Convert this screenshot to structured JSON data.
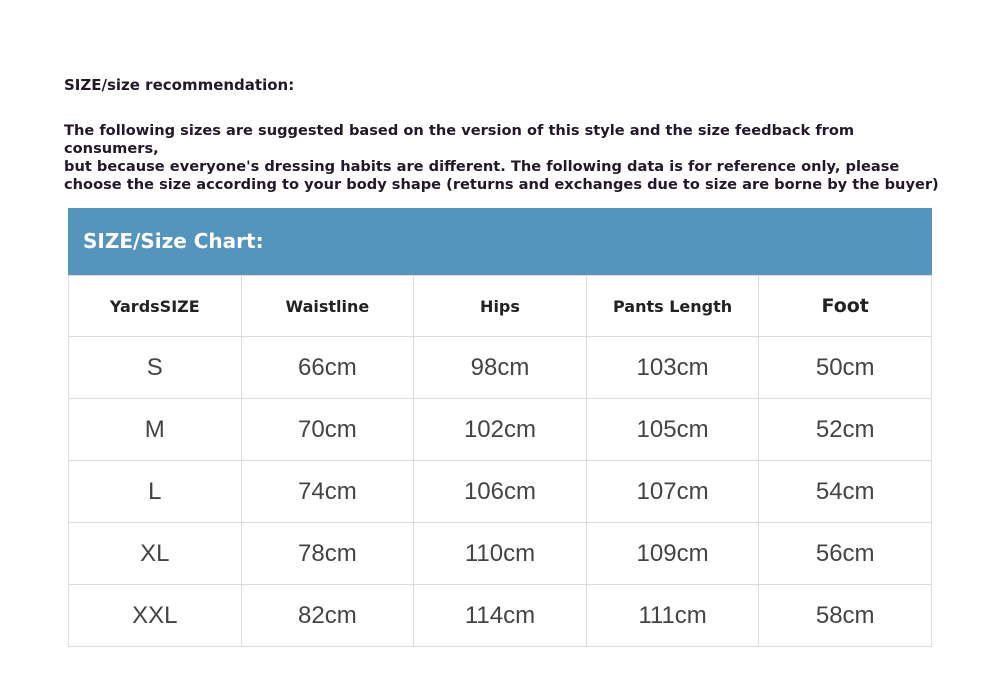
{
  "recommendation": {
    "title": "SIZE/size recommendation:",
    "body": "The following sizes are suggested based on the version of this style and the size feedback from consumers,\nbut because everyone's dressing habits are different. The following data is for reference only, please\nchoose the size according to your body shape (returns and exchanges due to size are borne by the buyer)"
  },
  "size_chart": {
    "title": "SIZE/Size Chart:",
    "header_color": "#5594bc",
    "columns": [
      "YardsSIZE",
      "Waistline",
      "Hips",
      "Pants Length",
      "Foot"
    ],
    "rows": [
      [
        "S",
        "66cm",
        "98cm",
        "103cm",
        "50cm"
      ],
      [
        "M",
        "70cm",
        "102cm",
        "105cm",
        "52cm"
      ],
      [
        "L",
        "74cm",
        "106cm",
        "107cm",
        "54cm"
      ],
      [
        "XL",
        "78cm",
        "110cm",
        "109cm",
        "56cm"
      ],
      [
        "XXL",
        "82cm",
        "114cm",
        "111cm",
        "58cm"
      ]
    ]
  }
}
